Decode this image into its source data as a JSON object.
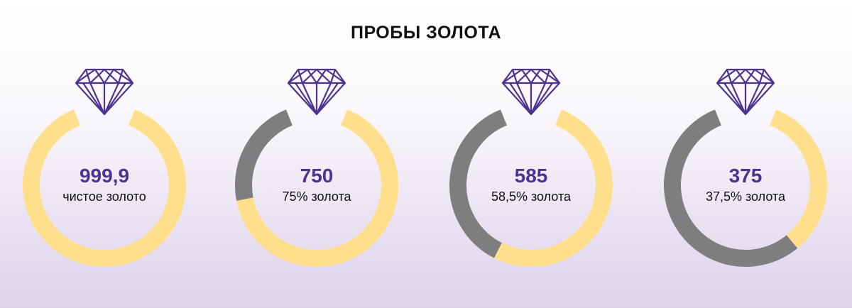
{
  "title": "ПРОБЫ ЗОЛОТА",
  "colors": {
    "gold": "#ffdf8c",
    "alloy": "#7e7e7e",
    "diamond": "#4b3491",
    "value_text": "#4b3491",
    "label_text": "#111111"
  },
  "chart_data": {
    "type": "pie",
    "title": "ПРОБЫ ЗОЛОТА",
    "categories": [
      "999,9",
      "750",
      "585",
      "375"
    ],
    "series": [
      {
        "name": "gold",
        "values": [
          99.99,
          75,
          58.5,
          37.5
        ]
      },
      {
        "name": "alloy",
        "values": [
          0.01,
          25,
          41.5,
          62.5
        ]
      }
    ]
  },
  "rings": [
    {
      "value": "999,9",
      "label": "чистое золото",
      "gold_fraction": 0.9999,
      "icon": "diamond-icon"
    },
    {
      "value": "750",
      "label": "75% золота",
      "gold_fraction": 0.75,
      "icon": "diamond-icon"
    },
    {
      "value": "585",
      "label": "58,5% золота",
      "gold_fraction": 0.585,
      "icon": "diamond-icon"
    },
    {
      "value": "375",
      "label": "37,5% золота",
      "gold_fraction": 0.375,
      "icon": "diamond-icon"
    }
  ]
}
